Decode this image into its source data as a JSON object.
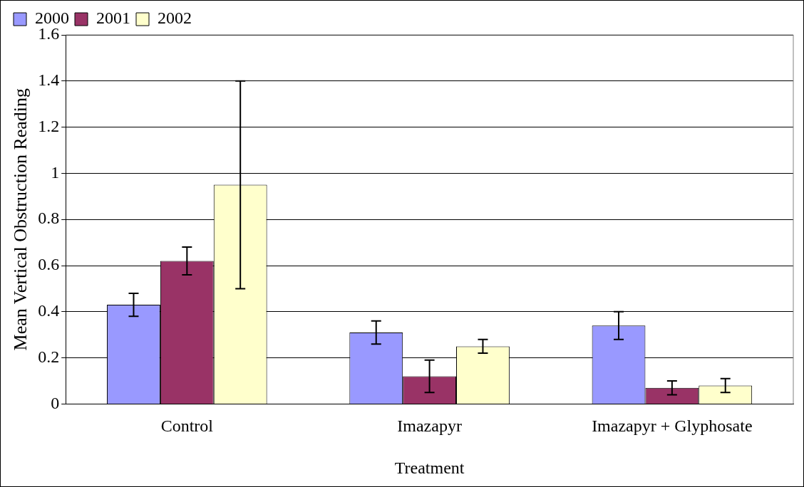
{
  "chart_data": {
    "type": "bar",
    "xlabel": "Treatment",
    "ylabel": "Mean Vertical Obstruction Reading",
    "categories": [
      "Control",
      "Imazapyr",
      "Imazapyr + Glyphosate"
    ],
    "series": [
      {
        "name": "2000",
        "color": "#9999ff",
        "values": [
          0.43,
          0.31,
          0.34
        ],
        "errors": [
          0.05,
          0.05,
          0.06
        ]
      },
      {
        "name": "2001",
        "color": "#993366",
        "values": [
          0.62,
          0.12,
          0.07
        ],
        "errors": [
          0.06,
          0.07,
          0.03
        ]
      },
      {
        "name": "2002",
        "color": "#ffffcc",
        "values": [
          0.95,
          0.25,
          0.08
        ],
        "errors": [
          0.45,
          0.03,
          0.03
        ]
      }
    ],
    "ylim": [
      0,
      1.6
    ],
    "yticks": [
      0,
      0.2,
      0.4,
      0.6,
      0.8,
      1,
      1.2,
      1.4,
      1.6
    ],
    "grid": "y",
    "legend": "top left"
  }
}
